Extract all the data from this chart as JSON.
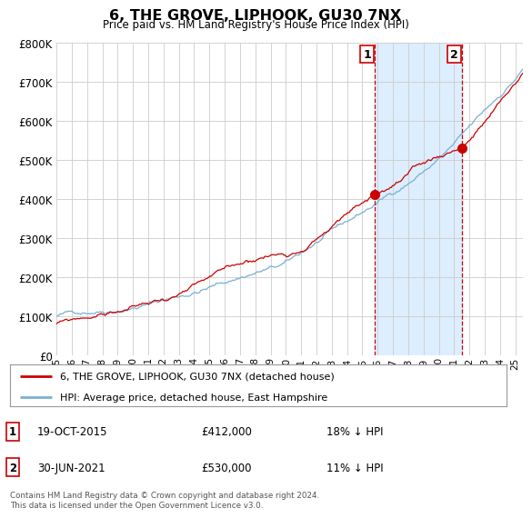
{
  "title": "6, THE GROVE, LIPHOOK, GU30 7NX",
  "subtitle": "Price paid vs. HM Land Registry's House Price Index (HPI)",
  "legend_line1": "6, THE GROVE, LIPHOOK, GU30 7NX (detached house)",
  "legend_line2": "HPI: Average price, detached house, East Hampshire",
  "annotation1_date": "19-OCT-2015",
  "annotation1_price": "£412,000",
  "annotation1_hpi": "18% ↓ HPI",
  "annotation2_date": "30-JUN-2021",
  "annotation2_price": "£530,000",
  "annotation2_hpi": "11% ↓ HPI",
  "footnote": "Contains HM Land Registry data © Crown copyright and database right 2024.\nThis data is licensed under the Open Government Licence v3.0.",
  "red_color": "#cc0000",
  "blue_color": "#7ab0d4",
  "marker_color": "#cc0000",
  "dashed_color": "#cc0000",
  "bg_color": "#ffffff",
  "grid_color": "#cccccc",
  "shade_color": "#ddeeff",
  "sale1_x": 2015.8,
  "sale1_y": 412000,
  "sale2_x": 2021.5,
  "sale2_y": 530000,
  "ylim": [
    0,
    800000
  ],
  "xlim": [
    1995,
    2025.5
  ]
}
